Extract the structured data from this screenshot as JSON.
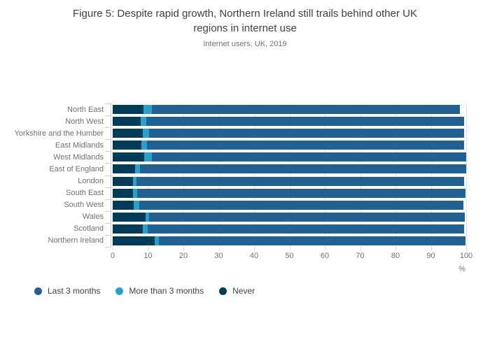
{
  "header": {
    "title_line1": "Figure 5: Despite rapid growth, Northern Ireland still trails behind other UK",
    "title_line2": "regions in internet use",
    "subtitle": "Internet users, UK, 2019"
  },
  "chart_data": {
    "type": "bar",
    "orientation": "horizontal",
    "stacked": true,
    "title": "Figure 5: Despite rapid growth, Northern Ireland still trails behind other UK regions in internet use",
    "subtitle": "Internet users, UK, 2019",
    "categories": [
      "North East",
      "North West",
      "Yorkshire and the Humber",
      "East Midlands",
      "West Midlands",
      "East of England",
      "London",
      "South East",
      "South West",
      "Wales",
      "Scotland",
      "Northern Ireland"
    ],
    "series": [
      {
        "name": "Last 3 months",
        "color": "#206095",
        "values": [
          87.2,
          89.8,
          89.2,
          89.8,
          88.9,
          92.3,
          92.8,
          93.0,
          91.8,
          89.3,
          89.5,
          86.8
        ]
      },
      {
        "name": "More than 3 months",
        "color": "#27A0CC",
        "values": [
          2.4,
          1.6,
          1.6,
          1.5,
          2.2,
          1.3,
          1.0,
          1.1,
          1.5,
          1.0,
          1.4,
          1.3
        ]
      },
      {
        "name": "Never",
        "color": "#003C57",
        "values": [
          8.7,
          8.0,
          8.6,
          8.2,
          8.9,
          6.4,
          5.7,
          5.8,
          6.0,
          9.3,
          8.6,
          11.8
        ]
      }
    ],
    "stack_order_left_to_right": [
      "Never",
      "More than 3 months",
      "Last 3 months"
    ],
    "xlabel": "%",
    "x_ticks": [
      0,
      10,
      20,
      30,
      40,
      50,
      60,
      70,
      80,
      90,
      100
    ],
    "xlim": [
      0,
      100
    ],
    "grid": "vertical",
    "legend_position": "bottom-left",
    "legend": [
      "Last 3 months",
      "More than 3 months",
      "Never"
    ]
  },
  "colors": {
    "last_3_months": "#206095",
    "more_than_3_months": "#27A0CC",
    "never": "#003C57",
    "gridline": "#dde2ea",
    "axis_tick": "#c3cfe0",
    "text_primary": "#414042",
    "text_secondary": "#707071"
  }
}
